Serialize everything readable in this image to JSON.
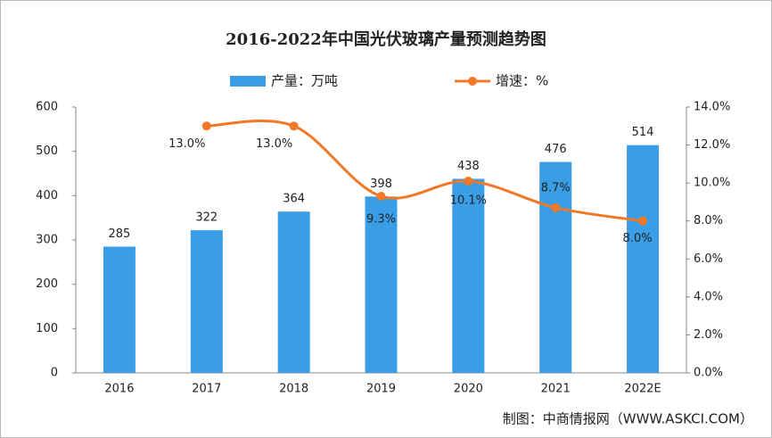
{
  "chart_data": {
    "type": "bar-line",
    "title": "2016-2022年中国光伏玻璃产量预测趋势图",
    "categories": [
      "2016",
      "2017",
      "2018",
      "2019",
      "2020",
      "2021",
      "2022E"
    ],
    "series": [
      {
        "name": "产量：万吨",
        "type": "bar",
        "color": "#3a9ee6",
        "values": [
          285,
          322,
          364,
          398,
          438,
          476,
          514
        ]
      },
      {
        "name": "增速：%",
        "type": "line",
        "axis": "y2",
        "color": "#f07826",
        "values": [
          null,
          13.0,
          13.0,
          9.3,
          10.1,
          8.7,
          8.0
        ],
        "value_labels": [
          null,
          "13.0%",
          "13.0%",
          "9.3%",
          "10.1%",
          "8.7%",
          "8.0%"
        ]
      }
    ],
    "ylim": [
      0,
      600
    ],
    "yticks": [
      0,
      100,
      200,
      300,
      400,
      500,
      600
    ],
    "y2lim": [
      0,
      14
    ],
    "y2ticks": [
      {
        "value": 0,
        "label": "0.0%"
      },
      {
        "value": 2,
        "label": "2.0%"
      },
      {
        "value": 4,
        "label": "4.0%"
      },
      {
        "value": 6,
        "label": "6.0%"
      },
      {
        "value": 8,
        "label": "8.0%"
      },
      {
        "value": 10,
        "label": "10.0%"
      },
      {
        "value": 12,
        "label": "12.0%"
      },
      {
        "value": 14,
        "label": "14.0%"
      }
    ],
    "source": "制图：中商情报网（WWW.ASKCI.COM）"
  }
}
